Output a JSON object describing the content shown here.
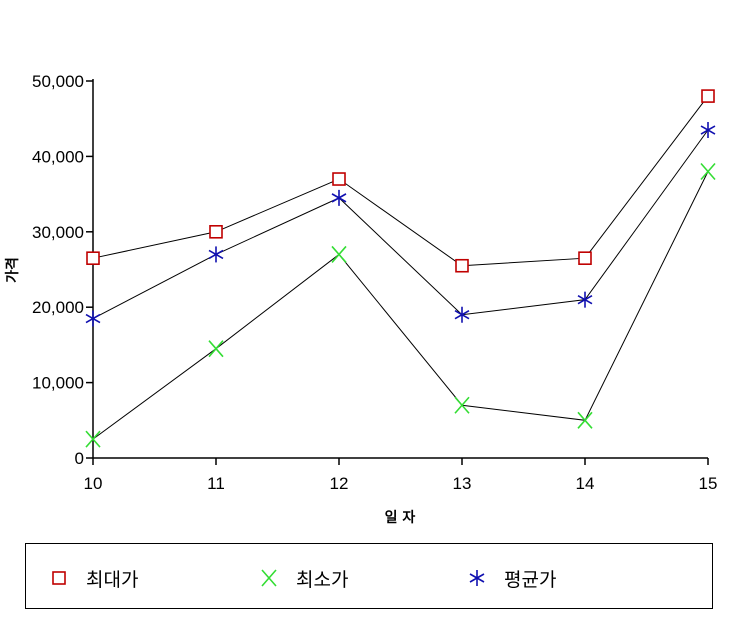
{
  "chart_data": {
    "type": "line",
    "xlabel": "일 자",
    "ylabel": "가격",
    "x": [
      10,
      11,
      12,
      13,
      14,
      15
    ],
    "x_tick_labels": [
      "10",
      "11",
      "12",
      "13",
      "14",
      "15"
    ],
    "ylim": [
      0,
      50000
    ],
    "y_ticks": [
      0,
      10000,
      20000,
      30000,
      40000,
      50000
    ],
    "y_tick_labels": [
      "0",
      "10,000",
      "20,000",
      "30,000",
      "40,000",
      "50,000"
    ],
    "grid": false,
    "legend_position": "bottom",
    "series": [
      {
        "name": "최대가",
        "marker": "square",
        "color": "#c00000",
        "values": [
          26500,
          30000,
          37000,
          25500,
          26500,
          48000
        ]
      },
      {
        "name": "최소가",
        "marker": "x",
        "color": "#33dd33",
        "values": [
          2500,
          14500,
          27000,
          7000,
          5000,
          38000
        ]
      },
      {
        "name": "평균가",
        "marker": "asterisk",
        "color": "#1010b0",
        "values": [
          18500,
          27000,
          34500,
          19000,
          21000,
          43500
        ]
      }
    ]
  },
  "legend": {
    "items": [
      {
        "label": "최대가",
        "icon": "square-marker-icon"
      },
      {
        "label": "최소가",
        "icon": "x-marker-icon"
      },
      {
        "label": "평균가",
        "icon": "asterisk-marker-icon"
      }
    ]
  }
}
